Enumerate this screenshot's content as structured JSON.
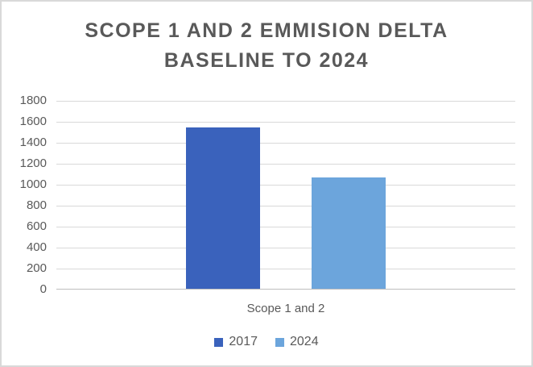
{
  "window": {
    "background": "#FFFFFF",
    "border_color": "#D9D9D9"
  },
  "chart_data": {
    "type": "bar",
    "title": "SCOPE 1 AND 2 EMMISION DELTA BASELINE TO 2024",
    "title_lines": [
      "SCOPE 1 AND 2 EMMISION DELTA",
      "BASELINE TO 2024"
    ],
    "categories": [
      "Scope 1 and 2"
    ],
    "series": [
      {
        "name": "2017",
        "values": [
          1540
        ],
        "color": "#3A62BC"
      },
      {
        "name": "2024",
        "values": [
          1065
        ],
        "color": "#6CA5DC"
      }
    ],
    "xlabel": "",
    "ylabel": "",
    "ylim": [
      0,
      1800
    ],
    "yticks": [
      0,
      200,
      400,
      600,
      800,
      1000,
      1200,
      1400,
      1600,
      1800
    ],
    "grid": true,
    "legend_position": "bottom",
    "text_color": "#595959",
    "title_color": "#595959",
    "gridline_color": "#D9D9D9",
    "axis_line_color": "#BFBFBF"
  }
}
